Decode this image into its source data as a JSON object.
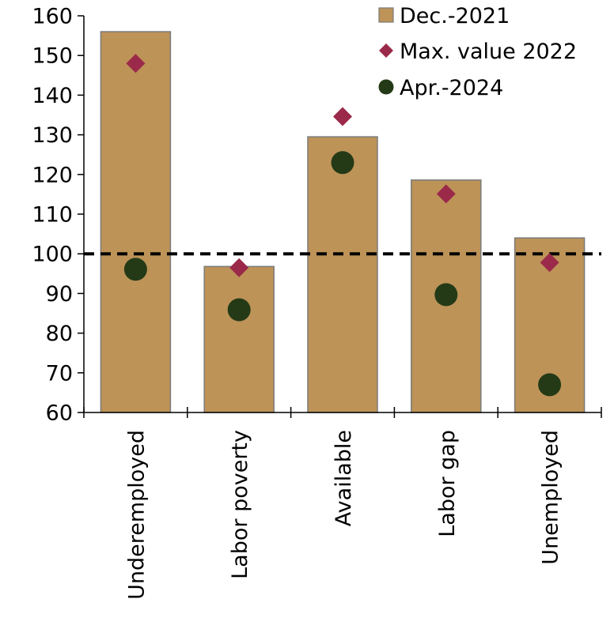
{
  "chart_data": {
    "type": "bar",
    "categories": [
      "Underemployed",
      "Labor poverty",
      "Available",
      "Labor gap",
      "Unemployed"
    ],
    "series": [
      {
        "name": "Dec.-2021",
        "kind": "bar",
        "values": [
          156,
          96.8,
          129.5,
          118.6,
          104
        ],
        "color": "#BD9358"
      },
      {
        "name": "Max. value 2022",
        "kind": "marker-diamond",
        "values": [
          148,
          96.5,
          134.6,
          115.1,
          97.8
        ],
        "color": "#9B2A4A"
      },
      {
        "name": "Apr.-2024",
        "kind": "marker-circle",
        "values": [
          96.1,
          85.9,
          123,
          89.7,
          67
        ],
        "color": "#243A17"
      }
    ],
    "reference_line": {
      "value": 100,
      "style": "dashed",
      "color": "#000000"
    },
    "title": "",
    "xlabel": "",
    "ylabel": "",
    "ylim": [
      60,
      160
    ],
    "yticks": [
      "60",
      "70",
      "80",
      "90",
      "100",
      "110",
      "120",
      "130",
      "140",
      "150",
      "160"
    ],
    "grid": false,
    "legend_position": "top-right"
  }
}
